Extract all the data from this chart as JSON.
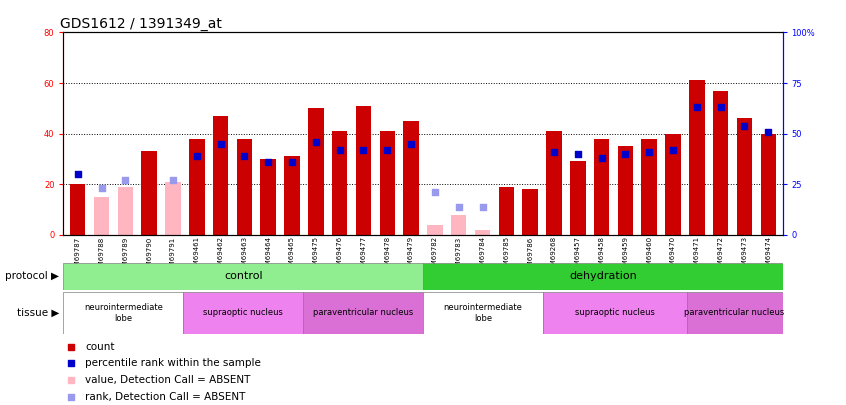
{
  "title": "GDS1612 / 1391349_at",
  "samples": [
    "GSM69787",
    "GSM69788",
    "GSM69789",
    "GSM69790",
    "GSM69791",
    "GSM69461",
    "GSM69462",
    "GSM69463",
    "GSM69464",
    "GSM69465",
    "GSM69475",
    "GSM69476",
    "GSM69477",
    "GSM69478",
    "GSM69479",
    "GSM69782",
    "GSM69783",
    "GSM69784",
    "GSM69785",
    "GSM69786",
    "GSM69268",
    "GSM69457",
    "GSM69458",
    "GSM69459",
    "GSM69460",
    "GSM69470",
    "GSM69471",
    "GSM69472",
    "GSM69473",
    "GSM69474"
  ],
  "count_values": [
    20,
    0,
    0,
    33,
    0,
    38,
    47,
    38,
    30,
    31,
    50,
    41,
    51,
    41,
    45,
    0,
    0,
    0,
    19,
    18,
    41,
    29,
    38,
    35,
    38,
    40,
    61,
    57,
    46,
    40
  ],
  "rank_values": [
    30,
    0,
    0,
    0,
    0,
    39,
    45,
    39,
    36,
    36,
    46,
    42,
    42,
    42,
    45,
    0,
    0,
    0,
    0,
    0,
    41,
    40,
    38,
    40,
    41,
    42,
    63,
    63,
    54,
    51
  ],
  "absent_count": [
    0,
    15,
    19,
    0,
    21,
    0,
    0,
    0,
    0,
    0,
    0,
    0,
    0,
    0,
    0,
    4,
    8,
    2,
    0,
    0,
    0,
    0,
    0,
    0,
    0,
    0,
    0,
    0,
    0,
    0
  ],
  "absent_rank": [
    0,
    23,
    27,
    0,
    27,
    0,
    0,
    0,
    0,
    0,
    0,
    0,
    0,
    0,
    0,
    21,
    14,
    14,
    0,
    0,
    0,
    0,
    0,
    0,
    0,
    0,
    0,
    0,
    0,
    0
  ],
  "protocol_groups": [
    {
      "label": "control",
      "start": 0,
      "end": 15,
      "color": "#90EE90"
    },
    {
      "label": "dehydration",
      "start": 15,
      "end": 30,
      "color": "#32CD32"
    }
  ],
  "tissue_groups": [
    {
      "label": "neurointermediate\nlobe",
      "start": 0,
      "end": 5,
      "color": "#FFFFFF"
    },
    {
      "label": "supraoptic nucleus",
      "start": 5,
      "end": 10,
      "color": "#EE82EE"
    },
    {
      "label": "paraventricular nucleus",
      "start": 10,
      "end": 15,
      "color": "#DA70D6"
    },
    {
      "label": "neurointermediate\nlobe",
      "start": 15,
      "end": 20,
      "color": "#FFFFFF"
    },
    {
      "label": "supraoptic nucleus",
      "start": 20,
      "end": 26,
      "color": "#EE82EE"
    },
    {
      "label": "paraventricular nucleus",
      "start": 26,
      "end": 30,
      "color": "#DA70D6"
    }
  ],
  "left_ylim": [
    0,
    80
  ],
  "right_ylim": [
    0,
    100
  ],
  "left_yticks": [
    0,
    20,
    40,
    60,
    80
  ],
  "right_yticks": [
    0,
    25,
    50,
    75,
    100
  ],
  "right_yticklabels": [
    "0",
    "25",
    "50",
    "75",
    "100%"
  ],
  "bar_color": "#CC0000",
  "absent_bar_color": "#FFB6C1",
  "rank_dot_color": "#0000CC",
  "absent_rank_dot_color": "#9999EE",
  "title_fontsize": 10,
  "tick_fontsize": 6,
  "legend_fontsize": 7.5
}
